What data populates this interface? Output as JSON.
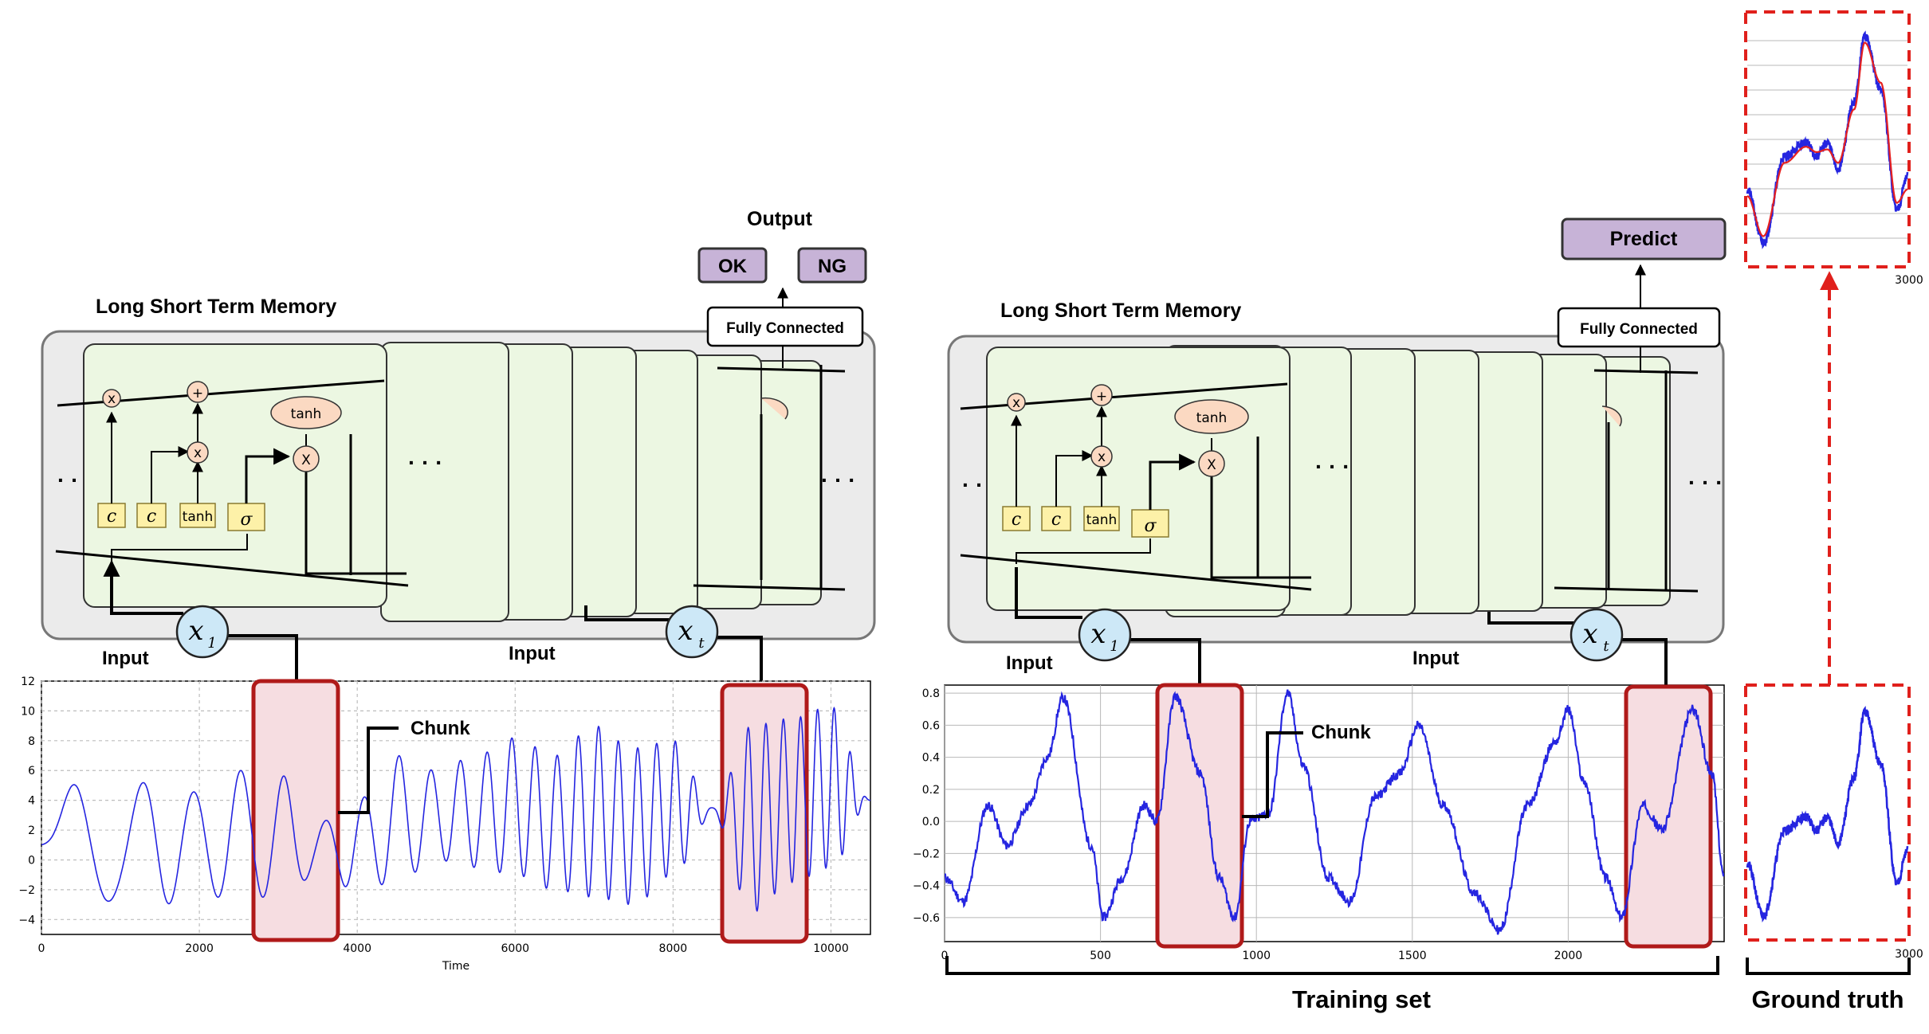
{
  "left": {
    "title": "Long Short Term Memory",
    "output_label": "Output",
    "ok_label": "OK",
    "ng_label": "NG",
    "fc_label": "Fully Connected",
    "input_label_1": "Input",
    "input_label_2": "Input",
    "chunk_label": "Chunk",
    "gate_labels": [
      "c",
      "c",
      "tanh",
      "σ"
    ],
    "ops": [
      "x",
      "+",
      "x",
      "X"
    ],
    "tanh_label": "tanh",
    "x1_main": "x",
    "x1_sub": "1",
    "xt_main": "x",
    "xt_sub": "t",
    "ellipsis": "· · ·",
    "left_dots": "· ·"
  },
  "right": {
    "title": "Long Short Term Memory",
    "predict_label": "Predict",
    "fc_label": "Fully Connected",
    "input_label_1": "Input",
    "input_label_2": "Input",
    "chunk_label": "Chunk",
    "training_label": "Training set",
    "gt_label": "Ground truth",
    "gate_labels": [
      "c",
      "c",
      "tanh",
      "σ"
    ],
    "ops": [
      "x",
      "+",
      "x",
      "X"
    ],
    "tanh_label": "tanh",
    "x1_main": "x",
    "x1_sub": "1",
    "xt_main": "x",
    "xt_sub": "t",
    "ellipsis": "· · ·",
    "left_dots": "· ·"
  },
  "colors": {
    "signal": "#2525e0",
    "chunk_fill": "#f6dde1",
    "chunk_border": "#b01a1a",
    "purple_button": "#c7b3d7",
    "panel_bg": "#ebebeb",
    "cell_bg": "#ecf7e2",
    "gate_box": "#fdf1a8",
    "op_circle": "#fbd9c2",
    "x_circle": "#cde8f7",
    "dashed_red": "#e0201c",
    "fit_red": "#e52020"
  },
  "chart_data": [
    {
      "type": "line",
      "xlabel": "Time",
      "ylabel": "",
      "xlim": [
        0,
        10500
      ],
      "ylim": [
        -5,
        12
      ],
      "x_ticks": [
        "0",
        "2000",
        "4000",
        "6000",
        "8000",
        "10000"
      ],
      "y_ticks": [
        "12",
        "10",
        "8",
        "6",
        "4",
        "2",
        "0",
        "−2",
        "−4"
      ],
      "grid": true,
      "chunks_x_ranges": [
        [
          2700,
          3800
        ],
        [
          8700,
          9700
        ]
      ],
      "series": [
        {
          "description_of_shape": "chirp-like oscillation, frequency and amplitude increasing with time",
          "x": [
            0,
            500,
            1000,
            1500,
            2000,
            2500,
            3000,
            3500,
            4000,
            4500,
            5000,
            5500,
            6000,
            6500,
            7000,
            7500,
            8000,
            8500,
            9000,
            9500,
            10000,
            10500
          ],
          "envelope_peak": [
            1.5,
            5.5,
            4.0,
            6.0,
            4.5,
            6.0,
            5.8,
            2.5,
            4.0,
            7.0,
            6.0,
            7.0,
            8.2,
            7.0,
            9.0,
            7.5,
            8.0,
            3.5,
            9.0,
            9.5,
            10.3,
            4.0
          ],
          "envelope_trough": [
            0.5,
            -4.0,
            -2.5,
            -3.0,
            -2.5,
            -2.5,
            -2.5,
            -1.0,
            -2.0,
            -1.5,
            0.0,
            -0.5,
            -1.0,
            -2.0,
            -2.5,
            -3.0,
            -1.0,
            3.0,
            -3.5,
            -1.5,
            -0.5,
            4.0
          ]
        }
      ]
    },
    {
      "type": "line",
      "xlim": [
        0,
        2500
      ],
      "ylim": [
        -0.75,
        0.85
      ],
      "x_ticks": [
        "0",
        "500",
        "1000",
        "1500",
        "2000"
      ],
      "y_ticks": [
        "0.8",
        "0.6",
        "0.4",
        "0.2",
        "0.0",
        "−0.2",
        "−0.4",
        "−0.6"
      ],
      "grid": true,
      "chunks_x_ranges": [
        [
          680,
          960
        ],
        [
          2200,
          2480
        ]
      ],
      "series": [
        {
          "x": [
            0,
            60,
            140,
            200,
            270,
            330,
            380,
            470,
            510,
            570,
            640,
            680,
            740,
            820,
            880,
            930,
            980,
            1040,
            1100,
            1150,
            1230,
            1300,
            1380,
            1460,
            1520,
            1600,
            1700,
            1780,
            1870,
            1960,
            2000,
            2050,
            2120,
            2170,
            2240,
            2300,
            2400,
            2460,
            2500
          ],
          "y": [
            -0.35,
            -0.5,
            0.1,
            -0.15,
            0.1,
            0.4,
            0.77,
            -0.15,
            -0.6,
            -0.35,
            0.1,
            0.0,
            0.78,
            0.3,
            -0.35,
            -0.6,
            0.0,
            0.05,
            0.8,
            0.35,
            -0.35,
            -0.5,
            0.15,
            0.3,
            0.6,
            0.1,
            -0.45,
            -0.68,
            0.1,
            0.5,
            0.7,
            0.25,
            -0.35,
            -0.6,
            0.1,
            -0.05,
            0.7,
            0.3,
            -0.35
          ]
        }
      ]
    },
    {
      "type": "line",
      "xlim": [
        0,
        3000
      ],
      "x_ticks": [
        "3000"
      ],
      "grid": true,
      "series": [
        {
          "name": "",
          "x": [
            0,
            300,
            700,
            1100,
            1300,
            1500,
            1700,
            2000,
            2200,
            2500,
            2800,
            3000
          ],
          "y": [
            -0.2,
            -0.6,
            0.05,
            0.15,
            0.05,
            0.15,
            -0.05,
            0.45,
            0.95,
            0.55,
            -0.35,
            -0.1
          ]
        },
        {
          "name": "",
          "x": [
            0,
            300,
            700,
            1100,
            1300,
            1500,
            1700,
            2000,
            2200,
            2500,
            2800,
            3000
          ],
          "y": [
            -0.25,
            -0.55,
            0.0,
            0.12,
            0.08,
            0.1,
            0.0,
            0.4,
            0.9,
            0.6,
            -0.3,
            -0.2
          ]
        }
      ]
    },
    {
      "type": "line",
      "xlim": [
        0,
        3000
      ],
      "x_ticks": [
        "3000"
      ],
      "grid": false,
      "series": [
        {
          "x": [
            0,
            300,
            700,
            1100,
            1300,
            1500,
            1700,
            2000,
            2200,
            2500,
            2800,
            3000
          ],
          "y": [
            -0.2,
            -0.6,
            0.05,
            0.15,
            0.05,
            0.15,
            -0.05,
            0.45,
            0.95,
            0.55,
            -0.35,
            -0.1
          ]
        }
      ]
    }
  ]
}
